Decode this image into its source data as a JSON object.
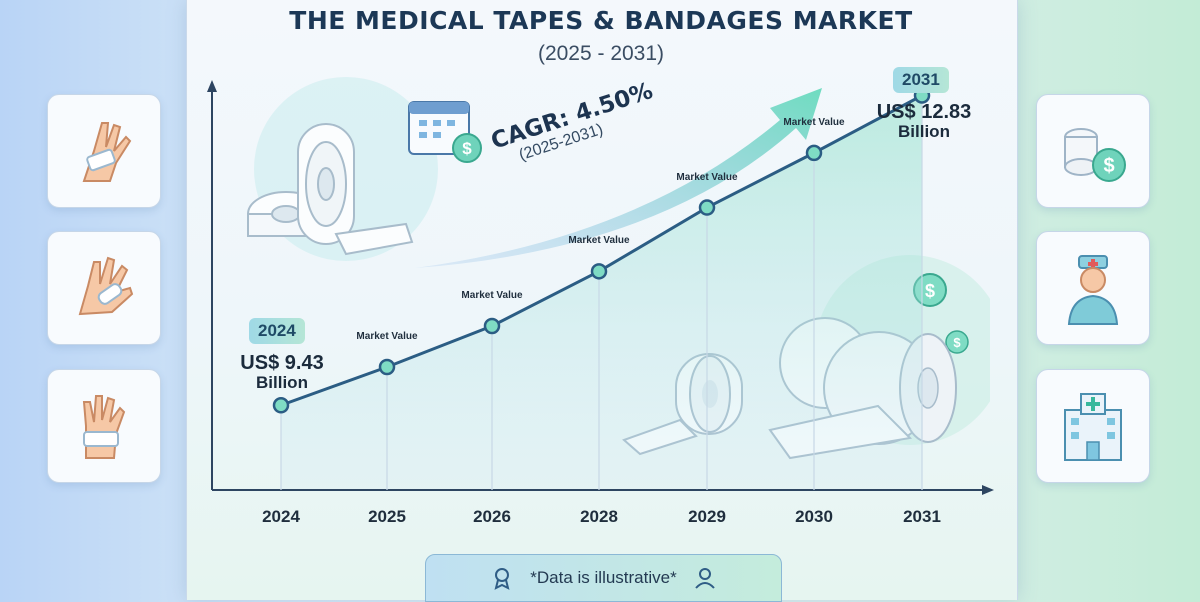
{
  "title": "THE MEDICAL TAPES & BANDAGES MARKET",
  "subtitle": "(2025 - 2031)",
  "cagr": {
    "label": "CAGR: 4.50%",
    "period": "(2025-2031)"
  },
  "start": {
    "year": "2024",
    "amount": "US$ 9.43",
    "unit": "Billion"
  },
  "end": {
    "year": "2031",
    "amount": "US$ 12.83",
    "unit": "Billion"
  },
  "point_label": "Market Value",
  "footer": "*Data is illustrative*",
  "colors": {
    "line": "#2b5d84",
    "marker": "#7fdcc4",
    "title": "#1c3856",
    "accent": "#5fd0b8"
  },
  "left_icons": [
    "bandaged-wrist-icon",
    "plaster-hand-icon",
    "bandaged-palm-icon"
  ],
  "right_icons": [
    "tape-roll-dollar-icon",
    "nurse-icon",
    "hospital-icon"
  ],
  "chart_data": {
    "type": "line",
    "categories": [
      "2024",
      "2025",
      "2026",
      "2028",
      "2029",
      "2030",
      "2031"
    ],
    "values": [
      9.43,
      9.85,
      10.3,
      10.9,
      11.6,
      12.2,
      12.83
    ],
    "title": "THE MEDICAL TAPES & BANDAGES MARKET",
    "xlabel": "",
    "ylabel": "",
    "ylim": [
      8.5,
      13.0
    ],
    "grid": false,
    "point_labels": [
      "",
      "Market Value",
      "Market Value",
      "Market Value",
      "Market Value",
      "Market Value",
      ""
    ]
  }
}
